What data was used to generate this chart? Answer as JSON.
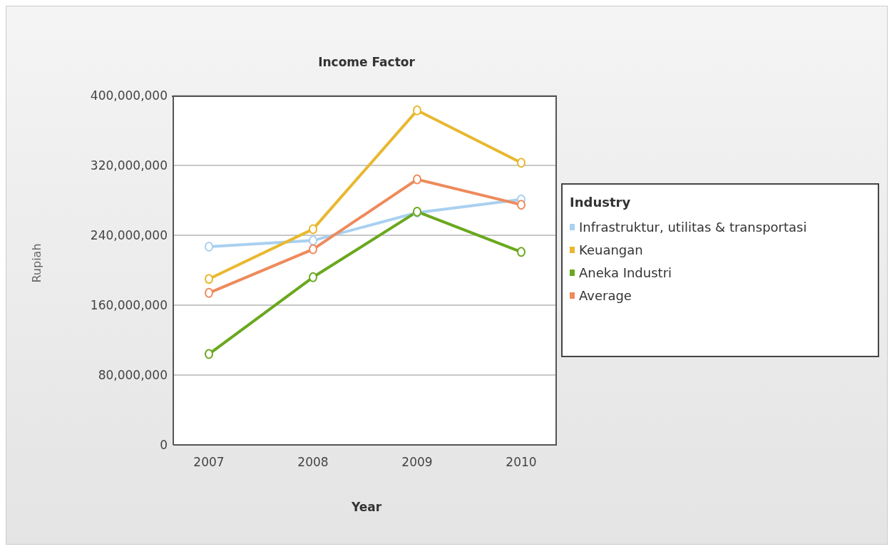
{
  "chart_data": {
    "type": "line",
    "title": "Income Factor",
    "xlabel": "Year",
    "ylabel": "Rupiah",
    "legend_title": "Industry",
    "categories": [
      "2007",
      "2008",
      "2009",
      "2010"
    ],
    "series": [
      {
        "name": "Infrastruktur, utilitas & transportasi",
        "color": "#a9d0f0",
        "values": [
          227000000,
          234000000,
          266000000,
          281000000
        ]
      },
      {
        "name": "Keuangan",
        "color": "#e8b830",
        "values": [
          190000000,
          247000000,
          383000000,
          323000000
        ]
      },
      {
        "name": "Aneka Industri",
        "color": "#6aa81e",
        "values": [
          104000000,
          192000000,
          267000000,
          221000000
        ]
      },
      {
        "name": "Average",
        "color": "#ee8a5c",
        "values": [
          174000000,
          224000000,
          304000000,
          275000000
        ]
      }
    ],
    "ylim": [
      0,
      400000000
    ],
    "yticks": [
      0,
      {
        "value": 80000000,
        "label": "80,000,000"
      },
      {
        "value": 160000000,
        "label": "160,000,000"
      },
      {
        "value": 240000000,
        "label": "240,000,000"
      },
      {
        "value": 320000000,
        "label": "320,000,000"
      },
      {
        "value": 400000000,
        "label": "400,000,000"
      }
    ],
    "grid": "y",
    "legend": "right",
    "marker": "circle",
    "line_style": "solid"
  }
}
